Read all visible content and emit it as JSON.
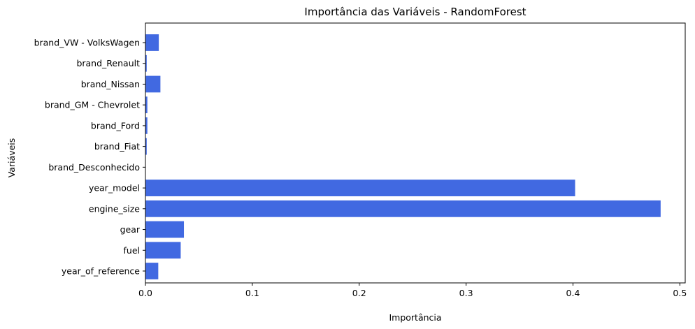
{
  "chart_data": {
    "type": "bar",
    "orientation": "horizontal",
    "title": "Importância das Variáveis - RandomForest",
    "xlabel": "Importância",
    "ylabel": "Variáveis",
    "categories": [
      "year_of_reference",
      "fuel",
      "gear",
      "engine_size",
      "year_model",
      "brand_Desconhecido",
      "brand_Fiat",
      "brand_Ford",
      "brand_GM - Chevrolet",
      "brand_Nissan",
      "brand_Renault",
      "brand_VW - VolksWagen"
    ],
    "values": [
      0.012,
      0.033,
      0.036,
      0.482,
      0.402,
      0.0003,
      0.0012,
      0.0018,
      0.0018,
      0.014,
      0.0012,
      0.0125
    ],
    "xlim": [
      0,
      0.505
    ],
    "xticks": [
      0.0,
      0.1,
      0.2,
      0.3,
      0.4,
      0.5
    ],
    "xtick_labels": [
      "0.0",
      "0.1",
      "0.2",
      "0.3",
      "0.4",
      "0.5"
    ],
    "bar_color": "#4169e1",
    "grid": false,
    "legend": "none"
  }
}
